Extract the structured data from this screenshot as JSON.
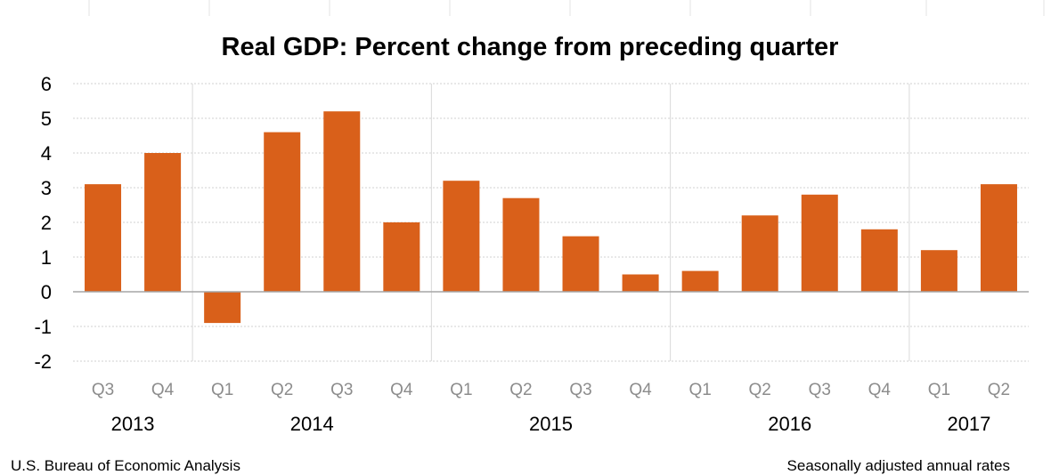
{
  "chart_data": {
    "type": "bar",
    "title": "Real GDP:  Percent change from preceding quarter",
    "categories": [
      "Q3",
      "Q4",
      "Q1",
      "Q2",
      "Q3",
      "Q4",
      "Q1",
      "Q2",
      "Q3",
      "Q4",
      "Q1",
      "Q2",
      "Q3",
      "Q4",
      "Q1",
      "Q2"
    ],
    "years": [
      {
        "label": "2013",
        "quarters": 2
      },
      {
        "label": "2014",
        "quarters": 4
      },
      {
        "label": "2015",
        "quarters": 4
      },
      {
        "label": "2016",
        "quarters": 4
      },
      {
        "label": "2017",
        "quarters": 2
      }
    ],
    "values": [
      3.1,
      4.0,
      -0.9,
      4.6,
      5.2,
      2.0,
      3.2,
      2.7,
      1.6,
      0.5,
      0.6,
      2.2,
      2.8,
      1.8,
      1.2,
      3.1
    ],
    "ylim": [
      -2,
      6
    ],
    "yticks": [
      6,
      5,
      4,
      3,
      2,
      1,
      0,
      -1,
      -2
    ],
    "grid": true,
    "bar_color": "#D9601A",
    "source": "U.S. Bureau of Economic Analysis",
    "note": "Seasonally adjusted annual  rates"
  }
}
